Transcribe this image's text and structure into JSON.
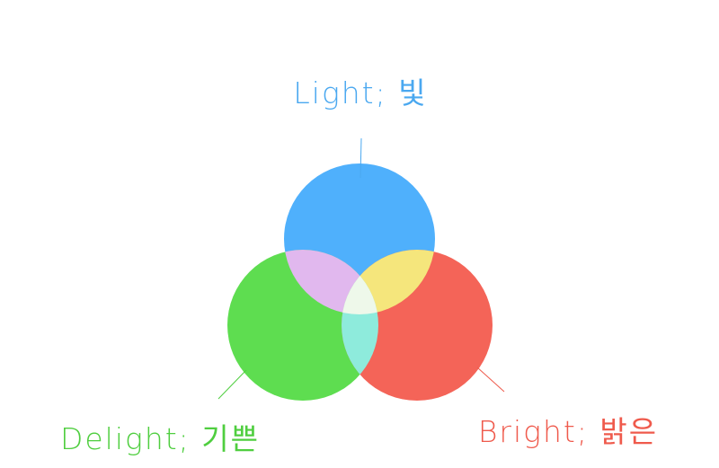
{
  "diagram": {
    "type": "venn",
    "sets": [
      {
        "id": "light",
        "label": "Light; 빛",
        "color": "#4fb0fc",
        "label_color": "#4aa8f0"
      },
      {
        "id": "delight",
        "label": "Delight; 기쁜",
        "color": "#5edd50",
        "label_color": "#4fce3f"
      },
      {
        "id": "bright",
        "label": "Bright; 밝은",
        "color": "#f46458",
        "label_color": "#ef5a4c"
      }
    ],
    "overlaps": [
      {
        "sets": [
          "light",
          "delight"
        ],
        "color": "#e1b8ee"
      },
      {
        "sets": [
          "light",
          "bright"
        ],
        "color": "#f5e67c"
      },
      {
        "sets": [
          "delight",
          "bright"
        ],
        "color": "#8eebdc"
      },
      {
        "sets": [
          "light",
          "delight",
          "bright"
        ],
        "color": "#eef8ea"
      }
    ]
  }
}
